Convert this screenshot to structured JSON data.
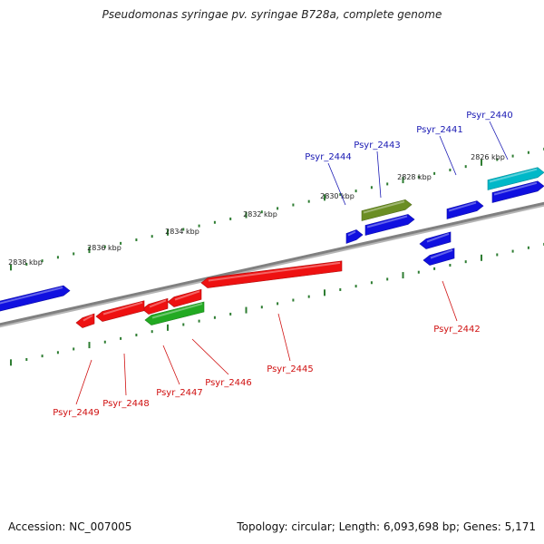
{
  "title": "Pseudomonas syringae pv. syringae B728a, complete genome",
  "footer": {
    "accession": "Accession: NC_007005",
    "summary": "Topology: circular; Length: 6,093,698 bp; Genes: 5,171"
  },
  "colors": {
    "backbone": "#808080",
    "tick": "#2e7d32",
    "forward_label": "#1a1ab4",
    "reverse_label": "#d01010"
  },
  "scale_ticks": [
    "2826 kbp",
    "2828 kbp",
    "2830 kbp",
    "2832 kbp",
    "2834 kbp",
    "2836 kbp",
    "2838 kbp"
  ],
  "genes": [
    {
      "name": "Psyr_2440",
      "strand": "forward",
      "color": "#00b8c8"
    },
    {
      "name": "Psyr_2441",
      "strand": "forward",
      "color": "#1010e0"
    },
    {
      "name": "Psyr_2442",
      "strand": "reverse",
      "color": "#1010e0"
    },
    {
      "name": "Psyr_2443",
      "strand": "forward",
      "color": "#6b8e23"
    },
    {
      "name": "Psyr_2444",
      "strand": "forward",
      "color": "#1010e0"
    },
    {
      "name": "Psyr_2445",
      "strand": "reverse",
      "color": "#ee1111"
    },
    {
      "name": "Psyr_2446",
      "strand": "reverse",
      "color": "#ee1111"
    },
    {
      "name": "Psyr_2447",
      "strand": "reverse",
      "color": "#22aa22"
    },
    {
      "name": "Psyr_2448",
      "strand": "reverse",
      "color": "#ee1111"
    },
    {
      "name": "Psyr_2449",
      "strand": "reverse",
      "color": "#ee1111"
    }
  ]
}
